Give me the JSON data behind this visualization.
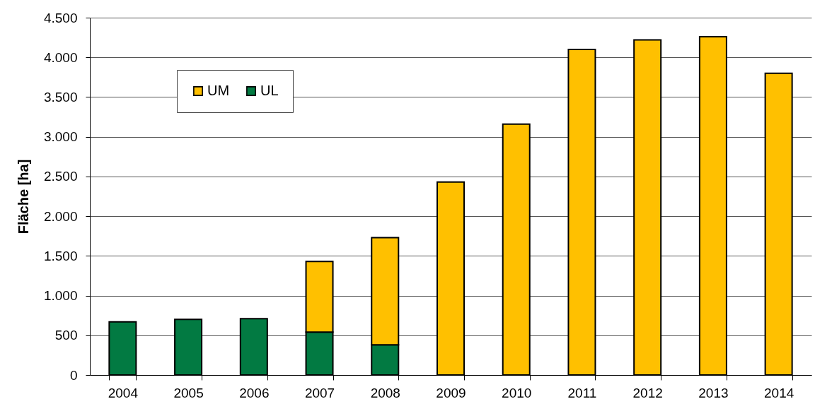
{
  "chart_data": {
    "type": "bar",
    "stacked": true,
    "ylabel": "Fläche [ha]",
    "categories": [
      "2004",
      "2005",
      "2006",
      "2007",
      "2008",
      "2009",
      "2010",
      "2011",
      "2012",
      "2013",
      "2014"
    ],
    "series": [
      {
        "name": "UL",
        "color": "#027a42",
        "values": [
          670,
          700,
          710,
          540,
          380,
          null,
          null,
          null,
          null,
          null,
          null
        ]
      },
      {
        "name": "UM",
        "color": "#ffc000",
        "values": [
          null,
          null,
          null,
          890,
          1350,
          2430,
          3160,
          4100,
          4220,
          4260,
          3800
        ]
      }
    ],
    "ylim": [
      0,
      4500
    ],
    "yticks": [
      0,
      500,
      {
        "value": 1000,
        "label": "1.000"
      },
      {
        "value": 1500,
        "label": "1.500"
      },
      {
        "value": 2000,
        "label": "2.000"
      },
      {
        "value": 2500,
        "label": "2.500"
      },
      {
        "value": 3000,
        "label": "3.000"
      },
      {
        "value": 3500,
        "label": "3.500"
      },
      {
        "value": 4000,
        "label": "4.000"
      },
      {
        "value": 4500,
        "label": "4.500"
      }
    ],
    "grid": "y",
    "legend": "top left"
  }
}
